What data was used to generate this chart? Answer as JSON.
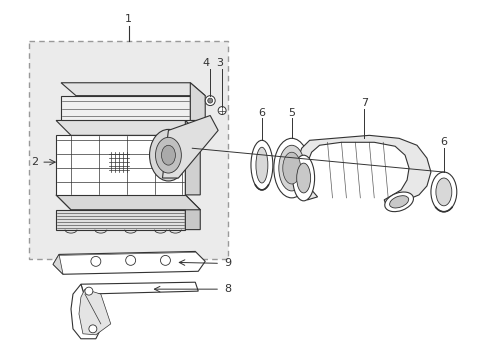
{
  "bg_color": "#ffffff",
  "line_color": "#333333",
  "border_color": "#aaaaaa",
  "fill_light": "#e8e8e8",
  "fill_mid": "#d4d4d4",
  "fill_dark": "#bbbbbb",
  "fig_width": 4.89,
  "fig_height": 3.6,
  "dpi": 100
}
